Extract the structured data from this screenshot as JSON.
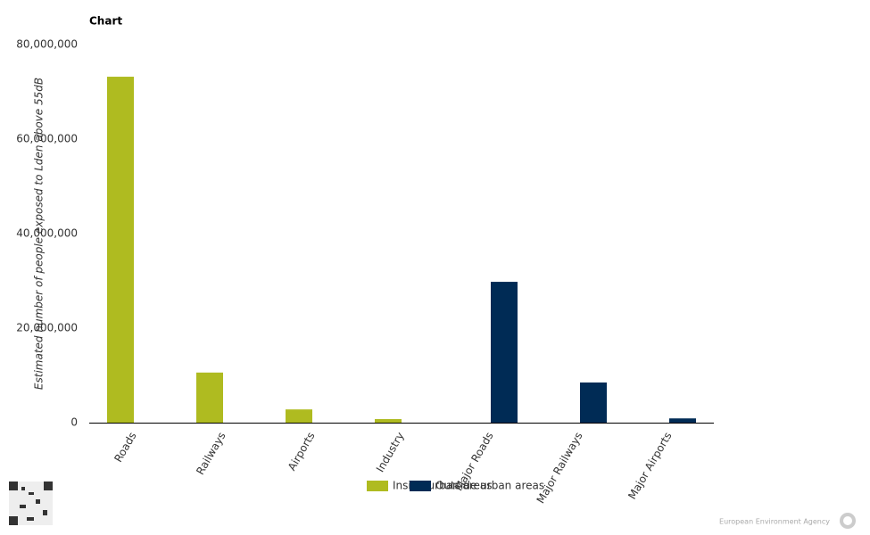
{
  "chart_data": {
    "type": "bar",
    "title": "Chart",
    "y_label": "Estimated number of people exposed to Lden above 55dB",
    "categories": [
      "Roads",
      "Railways",
      "Airports",
      "Industry",
      "Major Roads",
      "Major Railways",
      "Major Airports"
    ],
    "series": [
      {
        "name": "Inside urban areas",
        "color": "#afbb20",
        "values": [
          73200000,
          10600000,
          2800000,
          750000,
          null,
          null,
          null
        ]
      },
      {
        "name": "Outside urban areas",
        "color": "#002b55",
        "values": [
          null,
          null,
          null,
          null,
          29800000,
          8500000,
          900000
        ]
      }
    ],
    "ylim": [
      0,
      80000000
    ],
    "yticks": [
      0,
      {
        "value": 20000000,
        "label": "20,000,000"
      },
      {
        "value": 40000000,
        "label": "40,000,000"
      },
      {
        "value": 60000000,
        "label": "60,000,000"
      },
      {
        "value": 80000000,
        "label": "80,000,000"
      }
    ],
    "grid": false
  },
  "footer": {
    "credit": "European Environment Agency"
  }
}
